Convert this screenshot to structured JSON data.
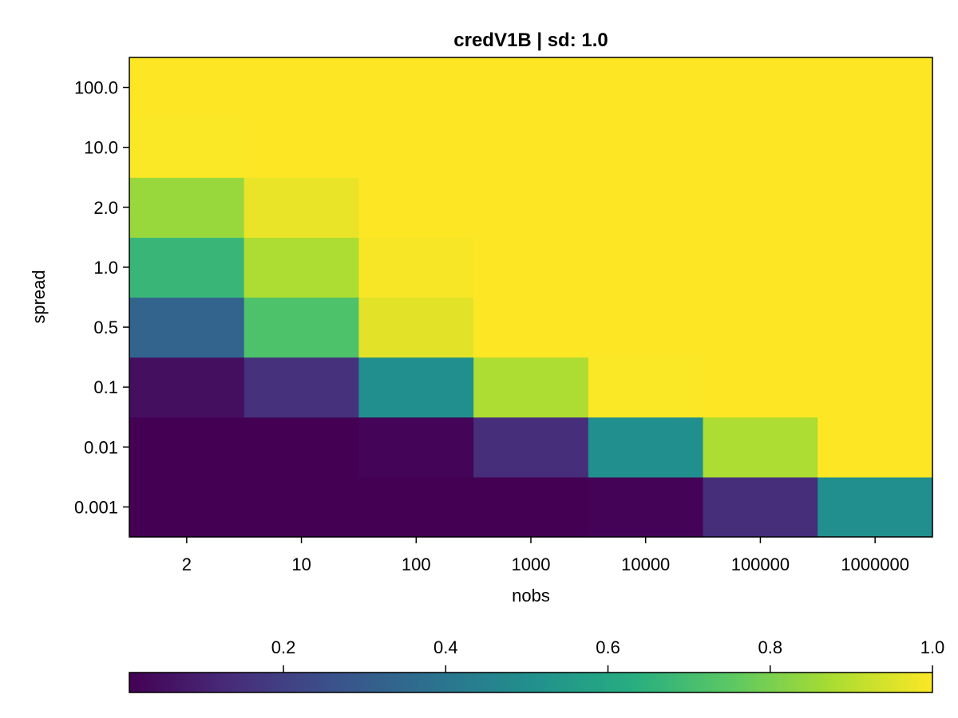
{
  "chart_data": {
    "type": "heatmap",
    "title": "credV1B | sd: 1.0",
    "xlabel": "nobs",
    "ylabel": "spread",
    "x_categories": [
      "2",
      "10",
      "100",
      "1000",
      "10000",
      "100000",
      "1000000"
    ],
    "y_categories": [
      "0.001",
      "0.01",
      "0.1",
      "0.5",
      "1.0",
      "2.0",
      "10.0",
      "100.0"
    ],
    "values": [
      [
        0.01,
        0.01,
        0.01,
        0.01,
        0.015,
        0.14,
        0.5
      ],
      [
        0.01,
        0.01,
        0.02,
        0.14,
        0.5,
        0.88,
        1.0
      ],
      [
        0.05,
        0.15,
        0.5,
        0.88,
        0.995,
        1.0,
        1.0
      ],
      [
        0.33,
        0.72,
        0.96,
        1.0,
        1.0,
        1.0,
        1.0
      ],
      [
        0.67,
        0.88,
        0.99,
        1.0,
        1.0,
        1.0,
        1.0
      ],
      [
        0.85,
        0.97,
        1.0,
        1.0,
        1.0,
        1.0,
        1.0
      ],
      [
        0.995,
        1.0,
        1.0,
        1.0,
        1.0,
        1.0,
        1.0
      ],
      [
        1.0,
        1.0,
        1.0,
        1.0,
        1.0,
        1.0,
        1.0
      ]
    ],
    "colormap": "viridis",
    "colorbar": {
      "range": [
        0.01,
        1.0
      ],
      "ticks": [
        0.2,
        0.4,
        0.6,
        0.8,
        1.0
      ],
      "tick_labels": [
        "0.2",
        "0.4",
        "0.6",
        "0.8",
        "1.0"
      ],
      "orientation": "horizontal",
      "placement": "bottom"
    }
  }
}
